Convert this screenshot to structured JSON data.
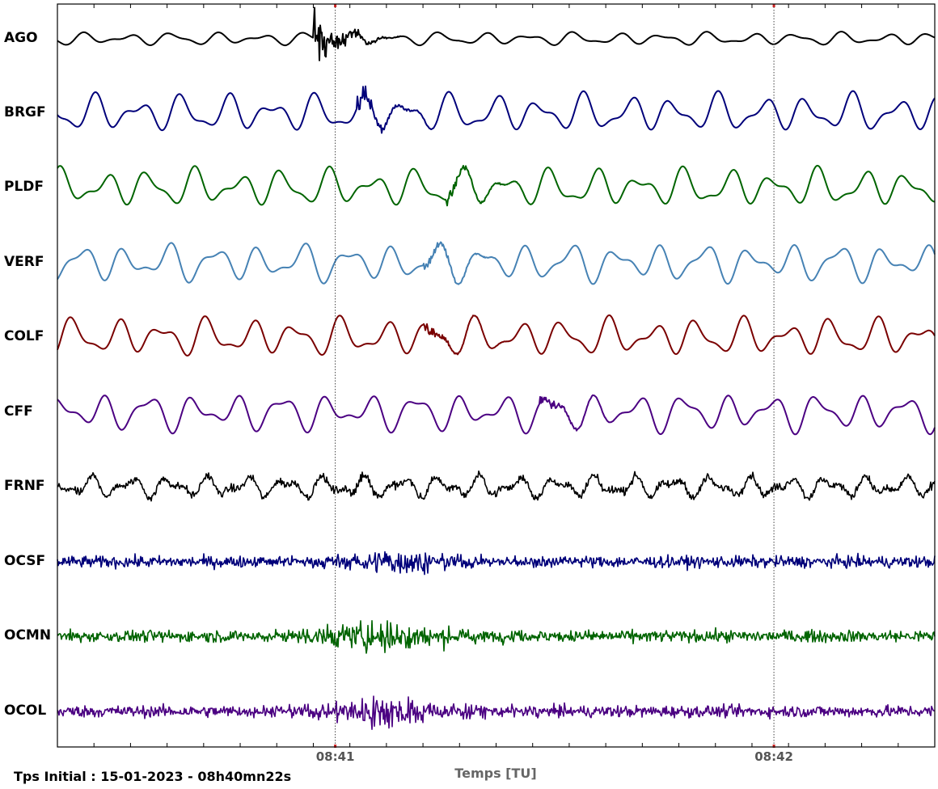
{
  "chart_data": {
    "type": "line",
    "title": "",
    "xlabel": "Temps [TU]",
    "ylabel": "",
    "grid": false,
    "start_time": "Tps Initial : 15-01-2023 - 08h40mn22s",
    "xlim_seconds": [
      0,
      120
    ],
    "xticks": [
      {
        "label": "08:41",
        "t": 38
      },
      {
        "label": "08:42",
        "t": 98
      }
    ],
    "event_lines_seconds": [
      38,
      98
    ],
    "event_marker_color": "#cc2222",
    "stations": [
      {
        "name": "AGO",
        "color": "#000000",
        "kind": "lowfreq",
        "event_seconds": 35,
        "event_amplitude": "high"
      },
      {
        "name": "BRGF",
        "color": "#00007a",
        "kind": "lowfreq",
        "event_seconds": 41,
        "event_amplitude": "medium"
      },
      {
        "name": "PLDF",
        "color": "#006400",
        "kind": "lowfreq",
        "event_seconds": 53,
        "event_amplitude": "low"
      },
      {
        "name": "VERF",
        "color": "#4682b4",
        "kind": "lowfreq",
        "event_seconds": 50,
        "event_amplitude": "low"
      },
      {
        "name": "COLF",
        "color": "#7a0000",
        "kind": "lowfreq",
        "event_seconds": 50,
        "event_amplitude": "low"
      },
      {
        "name": "CFF",
        "color": "#4b0082",
        "kind": "lowfreq",
        "event_seconds": 66,
        "event_amplitude": "low"
      },
      {
        "name": "FRNF",
        "color": "#000000",
        "kind": "noisy_low",
        "event_seconds": 40,
        "event_amplitude": "low"
      },
      {
        "name": "OCSF",
        "color": "#00007a",
        "kind": "highfreq",
        "event_seconds": 46,
        "event_amplitude": "medium"
      },
      {
        "name": "OCMN",
        "color": "#006400",
        "kind": "highfreq",
        "event_seconds": 44,
        "event_amplitude": "high"
      },
      {
        "name": "OCOL",
        "color": "#4b0082",
        "kind": "highfreq",
        "event_seconds": 45,
        "event_amplitude": "high"
      }
    ]
  }
}
